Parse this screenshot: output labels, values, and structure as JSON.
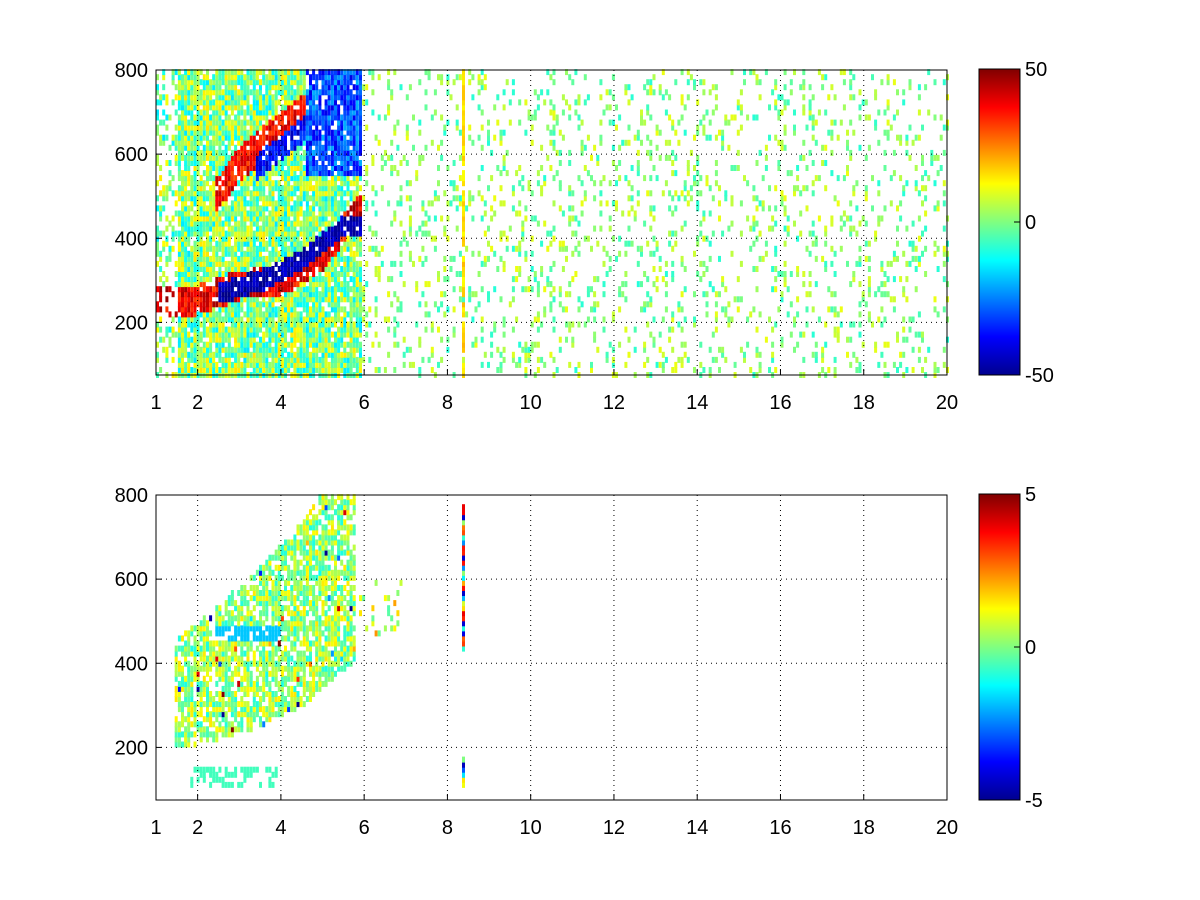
{
  "chart_data": [
    {
      "type": "heatmap",
      "x_ticks": [
        "1",
        "2",
        "4",
        "6",
        "8",
        "10",
        "12",
        "14",
        "16",
        "18",
        "20"
      ],
      "x_tick_values": [
        1,
        2,
        4,
        6,
        8,
        10,
        12,
        14,
        16,
        18,
        20
      ],
      "y_ticks": [
        "200",
        "400",
        "600",
        "800"
      ],
      "y_tick_values": [
        200,
        400,
        600,
        800
      ],
      "xlim": [
        1,
        20
      ],
      "ylim": [
        75,
        800
      ],
      "grid": true,
      "colormap": "jet",
      "colorbar": {
        "ticks": [
          "50",
          "0",
          "-50"
        ],
        "tick_values": [
          50,
          0,
          -50
        ],
        "clim": [
          -50,
          50
        ]
      },
      "features": [
        {
          "description": "upper arc",
          "x": [
            2.4,
            3.0,
            3.5,
            4.0,
            4.5,
            5.0
          ],
          "y": [
            500,
            580,
            620,
            660,
            700,
            760
          ],
          "value": 30
        },
        {
          "description": "lower arc",
          "x": [
            1.6,
            2.0,
            3.0,
            4.0,
            5.0,
            5.8
          ],
          "y": [
            245,
            255,
            290,
            300,
            360,
            470
          ],
          "value": 40
        },
        {
          "description": "negative band",
          "x": [
            2.5,
            3.5,
            4.5,
            5.5
          ],
          "y": [
            270,
            300,
            350,
            430
          ],
          "value": -45
        }
      ]
    },
    {
      "type": "heatmap",
      "x_ticks": [
        "1",
        "2",
        "4",
        "6",
        "8",
        "10",
        "12",
        "14",
        "16",
        "18",
        "20"
      ],
      "x_tick_values": [
        1,
        2,
        4,
        6,
        8,
        10,
        12,
        14,
        16,
        18,
        20
      ],
      "y_ticks": [
        "200",
        "400",
        "600",
        "800"
      ],
      "y_tick_values": [
        200,
        400,
        600,
        800
      ],
      "xlim": [
        1,
        20
      ],
      "ylim": [
        75,
        800
      ],
      "grid": true,
      "colormap": "jet",
      "colorbar": {
        "ticks": [
          "5",
          "0",
          "-5"
        ],
        "tick_values": [
          5,
          0,
          -5
        ],
        "clim": [
          -5,
          5
        ]
      },
      "features": [
        {
          "description": "arc region",
          "x": [
            1.6,
            2.5,
            3.5,
            4.5,
            5.7
          ],
          "y": [
            250,
            270,
            300,
            350,
            450
          ],
          "value": 0.3
        },
        {
          "description": "column near x=8.4",
          "x": [
            8.35
          ],
          "y": [
            430,
            780
          ],
          "value": 0
        }
      ]
    }
  ]
}
